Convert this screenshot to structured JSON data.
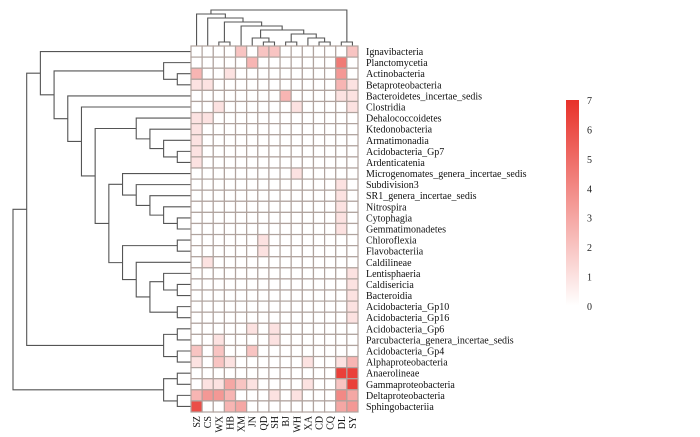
{
  "chart_data": {
    "type": "heatmap",
    "title": "",
    "columns": [
      "SZ",
      "CS",
      "WX",
      "HB",
      "XM",
      "JN",
      "QD",
      "SH",
      "BJ",
      "WH",
      "XA",
      "CD",
      "CQ",
      "DL",
      "SY"
    ],
    "rows": [
      "Ignavibacteria",
      "Planctomycetia",
      "Actinobacteria",
      "Betaproteobacteria",
      "Bacteroidetes_incertae_sedis",
      "Clostridia",
      "Dehalococcoidetes",
      "Ktedonobacteria",
      "Armatimonadia",
      "Acidobacteria_Gp7",
      "Ardenticatenia",
      "Microgenomates_genera_incertae_sedis",
      "Subdivision3",
      "SR1_genera_incertae_sedis",
      "Nitrospira",
      "Cytophagia",
      "Gemmatimonadetes",
      "Chloroflexia",
      "Flavobacteriia",
      "Caldilineae",
      "Lentisphaeria",
      "Caldisericia",
      "Bacteroidia",
      "Acidobacteria_Gp10",
      "Acidobacteria_Gp16",
      "Acidobacteria_Gp6",
      "Parcubacteria_genera_incertae_sedis",
      "Acidobacteria_Gp4",
      "Alphaproteobacteria",
      "Anaerolineae",
      "Gammaproteobacteria",
      "Deltaproteobacteria",
      "Sphingobacteriia"
    ],
    "values": [
      [
        0,
        0,
        0,
        0,
        2,
        0,
        2,
        2,
        0,
        0,
        0,
        0,
        0,
        0,
        2
      ],
      [
        0,
        0,
        0,
        0,
        0,
        2.5,
        0,
        0,
        0,
        0,
        0,
        0,
        0,
        4.5,
        0
      ],
      [
        2.5,
        0,
        0,
        1,
        0,
        0,
        0,
        0,
        0,
        0,
        0,
        0,
        0,
        3.5,
        0
      ],
      [
        1,
        1,
        0,
        0,
        0,
        0,
        0,
        0,
        0,
        0,
        0,
        0,
        0,
        2.5,
        1
      ],
      [
        0,
        0,
        0,
        0,
        0,
        0,
        0,
        0,
        2.5,
        0,
        0,
        0,
        0,
        1,
        1
      ],
      [
        0,
        0,
        1,
        0,
        0,
        0,
        0,
        0,
        0,
        1,
        0,
        0,
        0,
        0,
        1
      ],
      [
        1,
        1,
        0,
        0,
        0,
        0,
        0,
        0,
        0,
        0,
        0,
        0,
        0,
        0,
        0
      ],
      [
        1,
        0,
        0,
        0,
        0,
        0,
        0,
        0,
        0,
        0,
        0,
        0,
        0,
        0,
        0
      ],
      [
        1,
        0,
        0,
        0,
        0,
        0,
        0,
        0,
        0,
        0,
        0,
        0,
        0,
        0,
        0
      ],
      [
        1,
        0,
        0,
        0,
        0,
        0,
        0,
        0,
        0,
        0,
        0,
        0,
        0,
        0,
        0
      ],
      [
        1,
        0,
        0,
        0,
        0,
        0,
        0,
        0,
        0,
        0,
        0,
        0,
        0,
        0,
        0
      ],
      [
        0,
        0,
        0,
        0,
        0,
        0,
        0,
        0,
        0,
        1,
        0,
        0,
        0,
        0,
        0
      ],
      [
        0,
        0,
        0,
        0,
        0,
        0,
        0,
        0,
        0,
        0,
        0,
        0,
        0,
        1,
        0
      ],
      [
        0,
        0,
        0,
        0,
        0,
        0,
        0,
        0,
        0,
        0,
        0,
        0,
        0,
        1,
        0
      ],
      [
        0,
        0,
        0,
        0,
        0,
        0,
        0,
        0,
        0,
        0,
        0,
        0,
        0,
        1,
        0
      ],
      [
        0,
        0,
        0,
        0,
        0,
        0,
        0,
        0,
        0,
        0,
        0,
        0,
        0,
        1,
        0
      ],
      [
        0,
        0,
        0,
        0,
        0,
        0,
        0,
        0,
        0,
        0,
        0,
        0,
        0,
        1,
        0
      ],
      [
        0,
        0,
        0,
        0,
        0,
        0,
        1,
        0,
        0,
        0,
        0,
        0,
        0,
        0,
        0
      ],
      [
        0,
        0,
        0,
        0,
        0,
        0,
        1,
        0,
        0,
        0,
        0,
        0,
        0,
        0,
        0
      ],
      [
        0,
        1,
        0,
        0,
        0,
        0,
        0,
        0,
        0,
        0,
        0,
        0,
        0,
        0,
        0
      ],
      [
        0,
        0,
        0,
        0,
        0,
        0,
        0,
        0,
        0,
        0,
        0,
        0,
        0,
        0,
        1
      ],
      [
        0,
        0,
        0,
        0,
        0,
        0,
        0,
        0,
        0,
        0,
        0,
        0,
        0,
        0,
        1
      ],
      [
        0,
        0,
        0,
        0,
        0,
        0,
        0,
        0,
        0,
        0,
        0,
        0,
        0,
        0,
        1
      ],
      [
        0,
        0,
        0,
        0,
        0,
        0,
        0,
        0,
        0,
        0,
        0,
        0,
        0,
        0,
        1
      ],
      [
        0,
        0,
        0,
        0,
        0,
        0,
        0,
        0,
        0,
        0,
        0,
        0,
        0,
        0,
        1
      ],
      [
        0,
        0,
        0,
        0,
        0,
        1,
        0,
        1,
        0,
        0,
        0,
        0,
        0,
        0,
        0
      ],
      [
        0,
        0,
        1,
        0,
        0,
        0,
        0,
        1,
        0,
        0,
        0,
        0,
        0,
        0,
        0
      ],
      [
        2,
        0,
        2,
        0,
        0,
        2,
        0,
        0,
        0,
        0,
        0,
        0,
        0,
        0,
        0
      ],
      [
        1,
        0,
        2,
        1,
        0,
        0,
        0,
        0,
        0,
        0,
        1,
        0,
        0,
        1,
        2.5
      ],
      [
        0,
        0,
        0,
        0,
        0,
        0,
        0,
        0,
        0,
        0,
        0,
        0,
        0,
        6.5,
        6.5
      ],
      [
        0,
        1,
        1,
        3,
        2,
        1,
        0,
        0,
        0,
        0,
        1,
        0,
        0,
        2,
        6.5
      ],
      [
        2.5,
        3.5,
        3.5,
        2.5,
        0,
        0,
        0,
        1,
        0,
        1,
        0,
        0,
        0,
        4,
        3
      ],
      [
        6,
        0,
        0,
        2.5,
        3,
        0,
        0,
        0,
        0,
        0,
        0,
        0,
        0,
        3,
        3.5
      ]
    ],
    "colorbar": {
      "min": 0,
      "max": 7,
      "ticks": [
        "0",
        "1",
        "2",
        "3",
        "4",
        "5",
        "6",
        "7"
      ],
      "low_color": "#ffffff",
      "high_color": "#e8312a"
    },
    "grid_color": "#b0a39e",
    "dendrogram_color": "#555555",
    "row_dendrogram": true,
    "column_dendrogram": true
  }
}
